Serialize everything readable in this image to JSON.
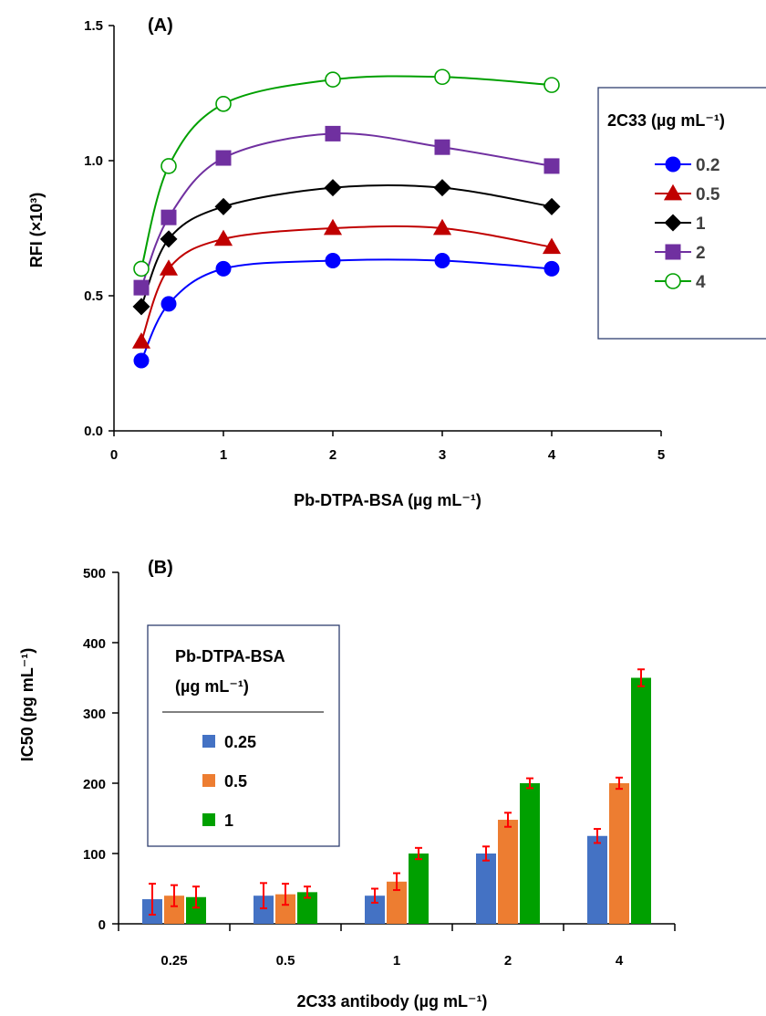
{
  "chart_data": [
    {
      "type": "line",
      "panel_label": "(A)",
      "xlabel": "Pb-DTPA-BSA (µg mL⁻¹)",
      "ylabel": "RFI (×10³)",
      "xlim": [
        0,
        5
      ],
      "ylim": [
        0,
        1.5
      ],
      "xticks": [
        "0",
        "1",
        "2",
        "3",
        "4",
        "5"
      ],
      "yticks": [
        "0.0",
        "0.5",
        "1.0",
        "1.5"
      ],
      "legend_title": "2C33 (µg mL⁻¹)",
      "legend_placement": "right",
      "x": [
        0.25,
        0.5,
        1,
        2,
        3,
        4
      ],
      "series": [
        {
          "name": "0.2",
          "marker": "circle",
          "filled": true,
          "color": "#0000ff",
          "values": [
            0.26,
            0.47,
            0.6,
            0.63,
            0.63,
            0.6
          ]
        },
        {
          "name": "0.5",
          "marker": "triangle",
          "filled": true,
          "color": "#c00000",
          "values": [
            0.33,
            0.6,
            0.71,
            0.75,
            0.75,
            0.68
          ]
        },
        {
          "name": "1",
          "marker": "diamond",
          "filled": true,
          "color": "#000000",
          "values": [
            0.46,
            0.71,
            0.83,
            0.9,
            0.9,
            0.83
          ]
        },
        {
          "name": "2",
          "marker": "square",
          "filled": true,
          "color": "#7030a0",
          "values": [
            0.53,
            0.79,
            1.01,
            1.1,
            1.05,
            0.98
          ]
        },
        {
          "name": "4",
          "marker": "circle",
          "filled": false,
          "color": "#00a000",
          "values": [
            0.6,
            0.98,
            1.21,
            1.3,
            1.31,
            1.28
          ]
        }
      ]
    },
    {
      "type": "bar",
      "panel_label": "(B)",
      "xlabel": "2C33 antibody (µg mL⁻¹)",
      "ylabel": "IC50 (pg mL⁻¹)",
      "ylim": [
        0,
        500
      ],
      "yticks": [
        "0",
        "100",
        "200",
        "300",
        "400",
        "500"
      ],
      "categories": [
        "0.25",
        "0.5",
        "1",
        "2",
        "4"
      ],
      "legend_title_line1": "Pb-DTPA-BSA",
      "legend_title_line2": "(µg mL⁻¹)",
      "legend_placement": "top-left",
      "error_bar_color": "#ff0000",
      "series": [
        {
          "name": "0.25",
          "color": "#4472c4",
          "values": [
            35,
            40,
            40,
            100,
            125
          ],
          "errors": [
            22,
            18,
            10,
            10,
            10
          ]
        },
        {
          "name": "0.5",
          "color": "#ed7d31",
          "values": [
            40,
            42,
            60,
            148,
            200
          ],
          "errors": [
            15,
            15,
            12,
            10,
            8
          ]
        },
        {
          "name": "1",
          "color": "#00a000",
          "values": [
            38,
            45,
            100,
            200,
            350
          ],
          "errors": [
            15,
            8,
            8,
            7,
            12
          ]
        }
      ]
    }
  ]
}
